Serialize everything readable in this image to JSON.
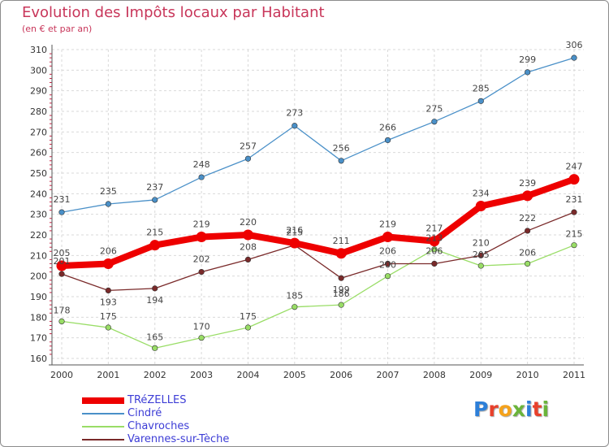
{
  "header": {
    "title": "Evolution des Impôts locaux par Habitant",
    "subtitle": "(en € et par an)"
  },
  "logo": {
    "text": "Proxiti",
    "letters": [
      "P",
      "r",
      "o",
      "x",
      "i",
      "t",
      "i"
    ],
    "colors": [
      "#2d7fd8",
      "#e8402b",
      "#f5a21b",
      "#6ab43a",
      "#2d7fd8",
      "#e8402b",
      "#6ab43a"
    ]
  },
  "chart_data": {
    "type": "line",
    "x": [
      "2000",
      "2001",
      "2002",
      "2003",
      "2004",
      "2005",
      "2006",
      "2007",
      "2008",
      "2009",
      "2010",
      "2011"
    ],
    "ylim": [
      160,
      310
    ],
    "yticks": [
      160,
      170,
      180,
      190,
      200,
      210,
      220,
      230,
      240,
      250,
      260,
      270,
      280,
      290,
      300,
      310
    ],
    "grid": true,
    "legend": "bottom-left",
    "series": [
      {
        "name": "Cindré",
        "color": "#4a90c8",
        "values": [
          231,
          235,
          237,
          248,
          257,
          273,
          256,
          266,
          275,
          285,
          299,
          306
        ]
      },
      {
        "name": "Chavroches",
        "color": "#99dd66",
        "values": [
          178,
          175,
          165,
          170,
          175,
          185,
          186,
          200,
          213,
          205,
          206,
          215
        ]
      },
      {
        "name": "Varennes-sur-Tèche",
        "color": "#7a2a2a",
        "values": [
          201,
          193,
          194,
          202,
          208,
          215,
          199,
          206,
          206,
          210,
          222,
          231
        ]
      },
      {
        "name": "TRéZELLES",
        "color": "#ee0000",
        "values": [
          205,
          206,
          215,
          219,
          220,
          216,
          211,
          219,
          217,
          234,
          239,
          247
        ]
      }
    ]
  }
}
